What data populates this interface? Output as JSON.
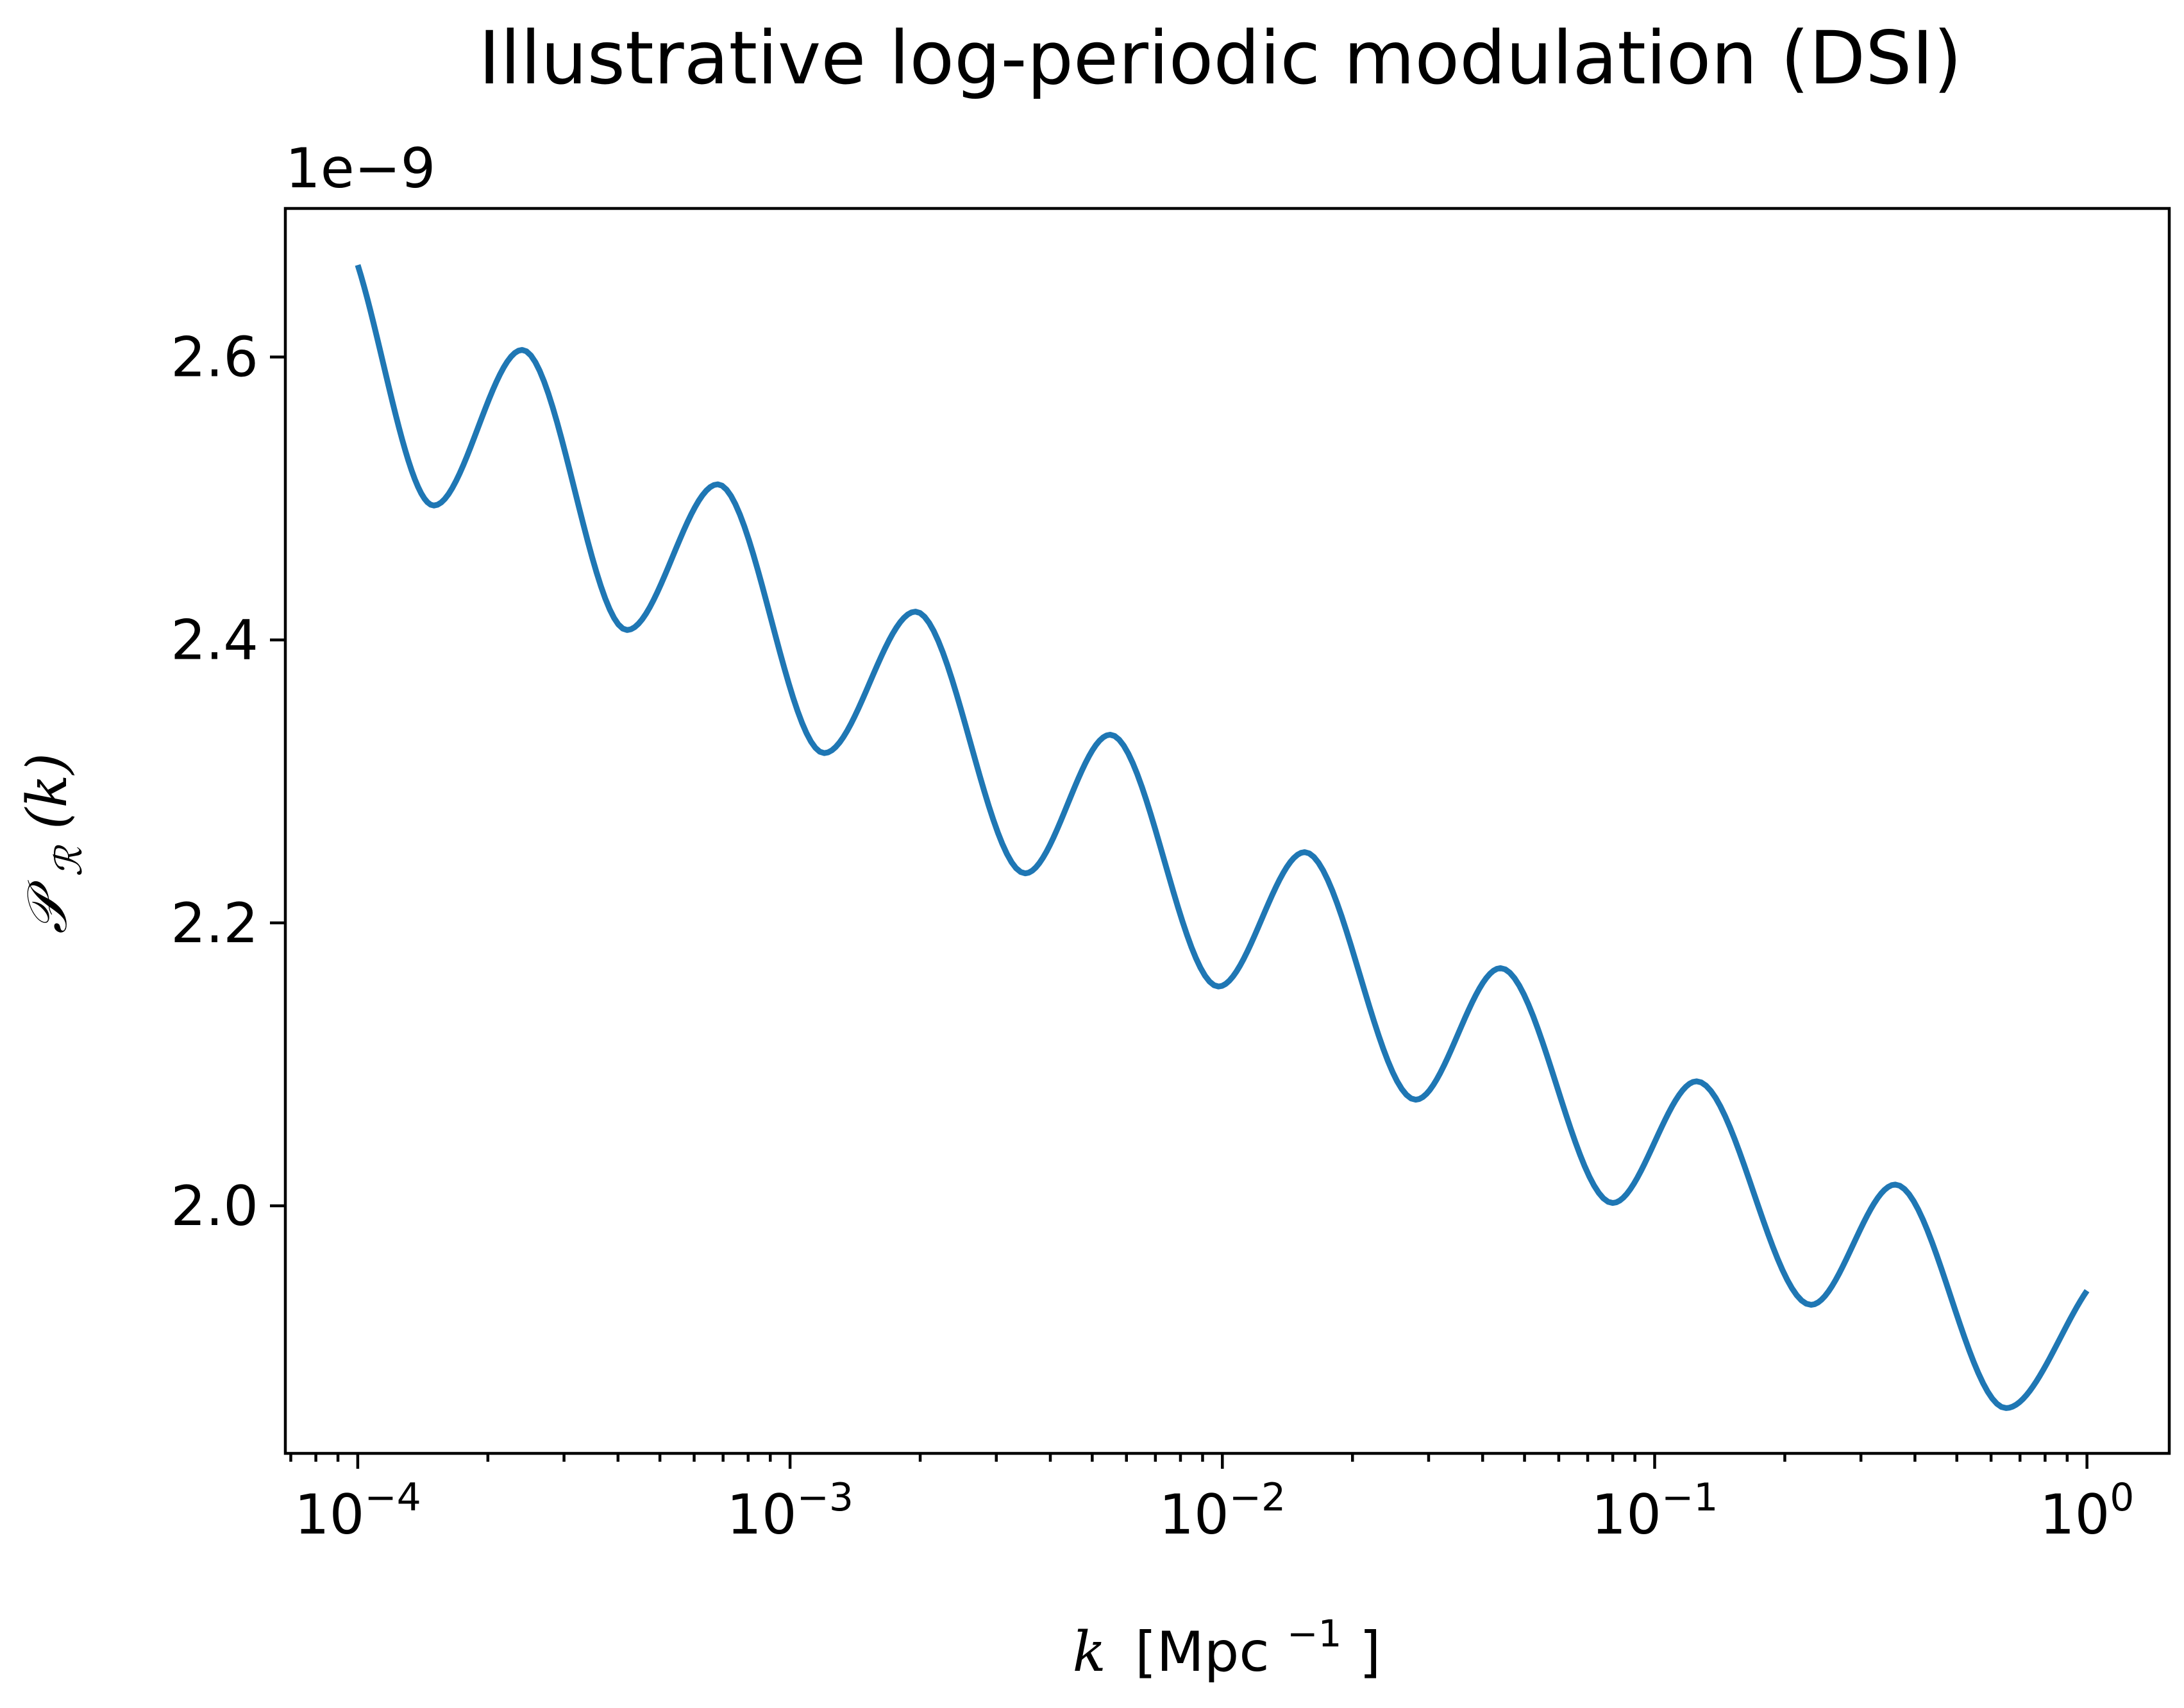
{
  "chart_data": {
    "type": "line",
    "title": "Illustrative log-periodic modulation (DSI)",
    "offset_text": "1e−9",
    "xlabel": {
      "variable": "k",
      "unit_base": "[Mpc",
      "unit_exponent": "−1",
      "unit_close": "]"
    },
    "ylabel": {
      "symbol": "𝒫",
      "subscript": "ℛ",
      "argument": "(k)"
    },
    "x_scale": "log",
    "xlim": [
      6.8e-05,
      1.55
    ],
    "ylim": [
      1.825,
      2.705
    ],
    "x_ticks": [
      {
        "value": 0.0001,
        "base": "10",
        "exp": "−4"
      },
      {
        "value": 0.001,
        "base": "10",
        "exp": "−3"
      },
      {
        "value": 0.01,
        "base": "10",
        "exp": "−2"
      },
      {
        "value": 0.1,
        "base": "10",
        "exp": "−1"
      },
      {
        "value": 1,
        "base": "10",
        "exp": "0"
      }
    ],
    "y_ticks": [
      {
        "value": 2.0,
        "label": "2.0"
      },
      {
        "value": 2.2,
        "label": "2.2"
      },
      {
        "value": 2.4,
        "label": "2.4"
      },
      {
        "value": 2.6,
        "label": "2.6"
      }
    ],
    "grid": false,
    "series": [
      {
        "color": "#1f77b4",
        "x": [
          0.0001,
          0.00015,
          0.00024,
          0.00042,
          0.00068,
          0.0012,
          0.00195,
          0.0035,
          0.0055,
          0.0098,
          0.0155,
          0.028,
          0.044,
          0.08,
          0.125,
          0.23,
          0.36,
          0.65,
          1.0
        ],
        "y": [
          2.665,
          2.495,
          2.605,
          2.407,
          2.51,
          2.32,
          2.42,
          2.235,
          2.333,
          2.155,
          2.25,
          2.075,
          2.168,
          2.002,
          2.088,
          1.93,
          2.015,
          1.857,
          1.94
        ]
      }
    ]
  }
}
